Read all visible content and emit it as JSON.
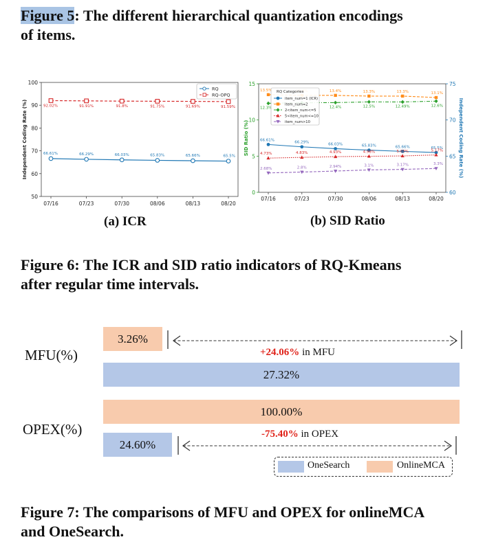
{
  "fig5": {
    "label": "Figure 5",
    "rest": ": The different hierarchical quantization encodings",
    "line2": "of items."
  },
  "fig6": {
    "line1": "Figure 6: The ICR and SID ratio indicators of RQ-Kmeans",
    "line2": "after regular time intervals."
  },
  "fig7": {
    "line1": "Figure 7: The comparisons of MFU and OPEX for onlineMCA",
    "line2": "and OneSearch."
  },
  "subcap_a": "(a) ICR",
  "subcap_b": "(b) SID Ratio",
  "chart_data": [
    {
      "type": "line",
      "title": "",
      "ylabel": "Independent Coding Rate (%)",
      "ylim": [
        50,
        100
      ],
      "yticks": [
        "50",
        "60",
        "70",
        "80",
        "90",
        "100"
      ],
      "categories": [
        "07/16",
        "07/23",
        "07/30",
        "08/06",
        "08/13",
        "08/20"
      ],
      "series": [
        {
          "name": "RQ",
          "color": "#1f77b4",
          "values": [
            66.61,
            66.29,
            66.03,
            65.83,
            65.66,
            65.5
          ],
          "labels": [
            "66.61%",
            "66.29%",
            "66.03%",
            "65.83%",
            "65.66%",
            "65.5%"
          ]
        },
        {
          "name": "RQ-OPQ",
          "color": "#d62728",
          "values": [
            92.02,
            91.91,
            91.8,
            91.75,
            91.69,
            91.59
          ],
          "labels": [
            "92.02%",
            "91.91%",
            "91.8%",
            "91.75%",
            "91.69%",
            "91.59%"
          ]
        }
      ]
    },
    {
      "type": "line",
      "title": "",
      "ylabel": "SID Ratio (%)",
      "ylabel_right": "Independent Coding Rate (%)",
      "ylim": [
        0,
        15
      ],
      "ylim_right": [
        60,
        75
      ],
      "yticks": [
        "0",
        "5",
        "10",
        "15"
      ],
      "yticks_right": [
        "60",
        "65",
        "70",
        "75"
      ],
      "categories": [
        "07/16",
        "07/23",
        "07/30",
        "08/06",
        "08/13",
        "08/20"
      ],
      "legend_title": "RQ Categories",
      "series": [
        {
          "name": "item_num=1 (ICR)",
          "color": "#1f77b4",
          "axis": "right",
          "values": [
            66.61,
            66.29,
            66.03,
            65.83,
            65.66,
            65.5
          ],
          "labels": [
            "66.61%",
            "66.29%",
            "66.03%",
            "65.83%",
            "65.66%",
            "65.5%"
          ]
        },
        {
          "name": "item_num=2",
          "color": "#ff8c1a",
          "axis": "left",
          "values": [
            13.5,
            13.4,
            13.4,
            13.3,
            13.3,
            13.1
          ],
          "labels": [
            "13.5%",
            "13.4%",
            "13.4%",
            "13.3%",
            "13.3%",
            "13.1%"
          ]
        },
        {
          "name": "2<item_num<=5",
          "color": "#2ca02c",
          "axis": "left",
          "values": [
            12.3,
            12.38,
            12.4,
            12.5,
            12.49,
            12.6
          ],
          "labels": [
            "12.3%",
            "12.38%",
            "12.4%",
            "12.5%",
            "12.49%",
            "12.6%"
          ]
        },
        {
          "name": "5<item_num<=10",
          "color": "#d62728",
          "axis": "left",
          "values": [
            4.73,
            4.83,
            4.93,
            4.98,
            5.03,
            5.17
          ],
          "labels": [
            "4.73%",
            "4.83%",
            "4.93%",
            "4.98%",
            "5.03%",
            "5.17%"
          ]
        },
        {
          "name": "item_num>10",
          "color": "#9467bd",
          "axis": "left",
          "values": [
            2.68,
            2.8,
            2.94,
            3.1,
            3.17,
            3.3
          ],
          "labels": [
            "2.68%",
            "2.8%",
            "2.94%",
            "3.1%",
            "3.17%",
            "3.3%"
          ]
        }
      ]
    },
    {
      "type": "bar",
      "rows": [
        {
          "label": "MFU(%)",
          "onlinemca": 3.26,
          "onlinemca_label": "3.26%",
          "onesearch": 27.32,
          "onesearch_label": "27.32%",
          "delta": "+24.06%",
          "delta_text": " in MFU"
        },
        {
          "label": "OPEX(%)",
          "onlinemca": 100,
          "onlinemca_label": "100.00%",
          "onesearch": 24.6,
          "onesearch_label": "24.60%",
          "delta": "-75.40%",
          "delta_text": " in OPEX"
        }
      ],
      "legend": [
        {
          "name": "OneSearch",
          "color": "#b4c7e7"
        },
        {
          "name": "OnlineMCA",
          "color": "#f8cbad"
        }
      ]
    }
  ]
}
